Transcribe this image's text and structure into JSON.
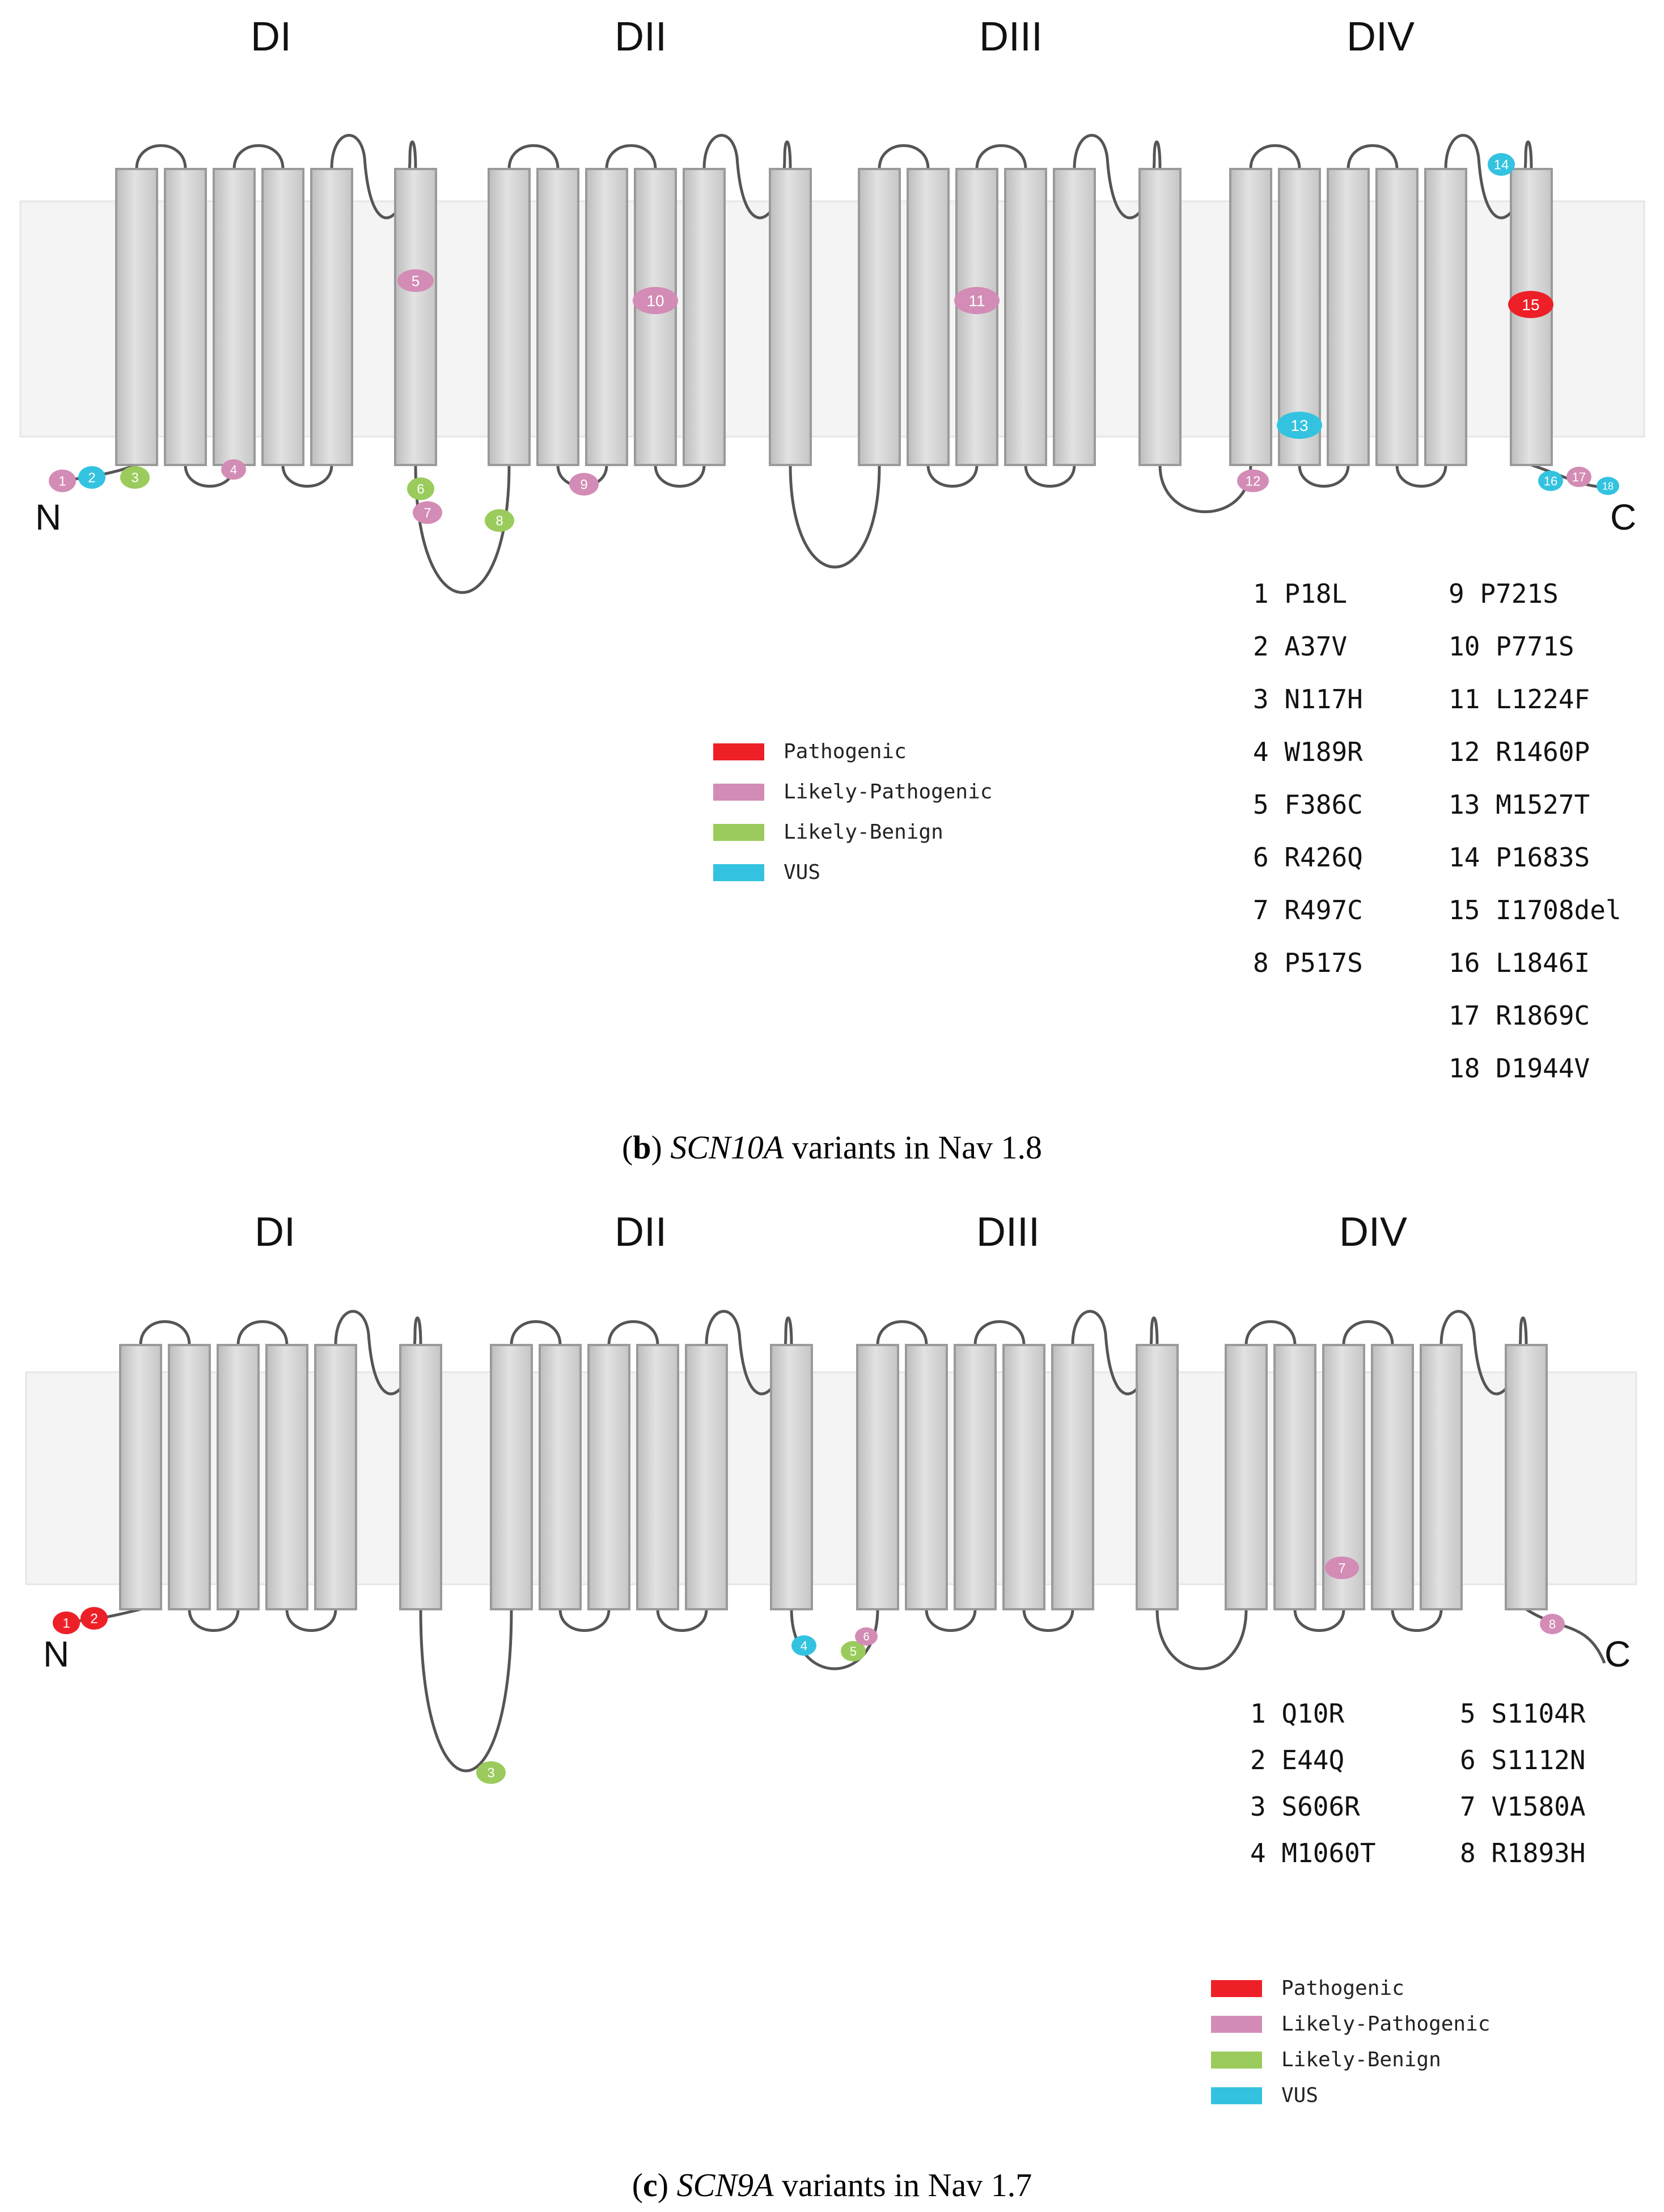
{
  "colors": {
    "Pathogenic": "#ee2027",
    "Likely-Pathogenic": "#d38cb5",
    "Likely-Benign": "#9acb5c",
    "VUS": "#33c3e0",
    "helix": "#d6d6d6",
    "membrane": "#f4f4f4",
    "loop": "#555555"
  },
  "panel_b": {
    "domains": [
      "DI",
      "DII",
      "DIII",
      "DIV"
    ],
    "n_terminal": "N",
    "c_terminal": "C",
    "caption": {
      "letter": "b",
      "gene": "SCN10A",
      "rest": "variants in Nav 1.8"
    },
    "legend": [
      {
        "label": "Pathogenic",
        "color": "#ee2027"
      },
      {
        "label": "Likely-Pathogenic",
        "color": "#d38cb5"
      },
      {
        "label": "Likely-Benign",
        "color": "#9acb5c"
      },
      {
        "label": "VUS",
        "color": "#33c3e0"
      }
    ],
    "variants": [
      {
        "n": "1",
        "name": "P18L",
        "cls": "Likely-Pathogenic"
      },
      {
        "n": "2",
        "name": "A37V",
        "cls": "VUS"
      },
      {
        "n": "3",
        "name": "N117H",
        "cls": "Likely-Benign"
      },
      {
        "n": "4",
        "name": "W189R",
        "cls": "Likely-Pathogenic"
      },
      {
        "n": "5",
        "name": "F386C",
        "cls": "Likely-Pathogenic"
      },
      {
        "n": "6",
        "name": "R426Q",
        "cls": "Likely-Benign"
      },
      {
        "n": "7",
        "name": "R497C",
        "cls": "Likely-Pathogenic"
      },
      {
        "n": "8",
        "name": "P517S",
        "cls": "Likely-Benign"
      },
      {
        "n": "9",
        "name": "P721S",
        "cls": "Likely-Pathogenic"
      },
      {
        "n": "10",
        "name": "P771S",
        "cls": "Likely-Pathogenic"
      },
      {
        "n": "11",
        "name": "L1224F",
        "cls": "Likely-Pathogenic"
      },
      {
        "n": "12",
        "name": "R1460P",
        "cls": "Likely-Pathogenic"
      },
      {
        "n": "13",
        "name": "M1527T",
        "cls": "VUS"
      },
      {
        "n": "14",
        "name": "P1683S",
        "cls": "VUS"
      },
      {
        "n": "15",
        "name": "I1708del",
        "cls": "Pathogenic"
      },
      {
        "n": "16",
        "name": "L1846I",
        "cls": "VUS"
      },
      {
        "n": "17",
        "name": "R1869C",
        "cls": "Likely-Pathogenic"
      },
      {
        "n": "18",
        "name": "D1944V",
        "cls": "VUS"
      }
    ]
  },
  "panel_c": {
    "domains": [
      "DI",
      "DII",
      "DIII",
      "DIV"
    ],
    "n_terminal": "N",
    "c_terminal": "C",
    "caption": {
      "letter": "c",
      "gene": "SCN9A",
      "rest": "variants in Nav 1.7"
    },
    "legend": [
      {
        "label": "Pathogenic",
        "color": "#ee2027"
      },
      {
        "label": "Likely-Pathogenic",
        "color": "#d38cb5"
      },
      {
        "label": "Likely-Benign",
        "color": "#9acb5c"
      },
      {
        "label": "VUS",
        "color": "#33c3e0"
      }
    ],
    "variants": [
      {
        "n": "1",
        "name": "Q10R",
        "cls": "Pathogenic"
      },
      {
        "n": "2",
        "name": "E44Q",
        "cls": "Pathogenic"
      },
      {
        "n": "3",
        "name": "S606R",
        "cls": "Likely-Benign"
      },
      {
        "n": "4",
        "name": "M1060T",
        "cls": "VUS"
      },
      {
        "n": "5",
        "name": "S1104R",
        "cls": "Likely-Benign"
      },
      {
        "n": "6",
        "name": "S1112N",
        "cls": "Likely-Pathogenic"
      },
      {
        "n": "7",
        "name": "V1580A",
        "cls": "Likely-Pathogenic"
      },
      {
        "n": "8",
        "name": "R1893H",
        "cls": "Likely-Pathogenic"
      }
    ]
  }
}
